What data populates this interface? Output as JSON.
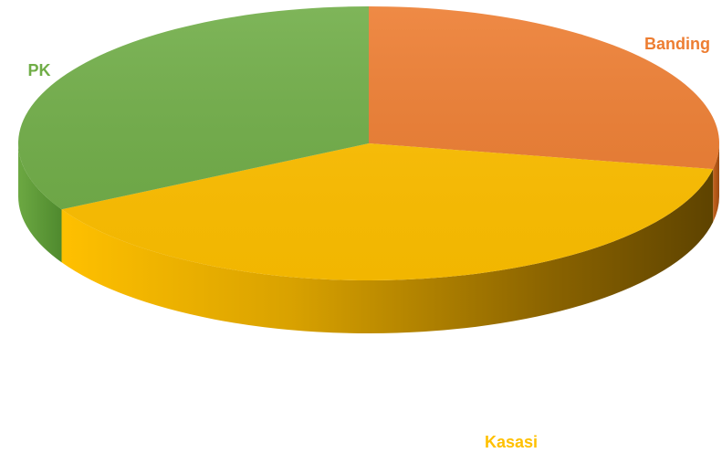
{
  "chart_data": {
    "type": "pie",
    "style": "3d",
    "categories": [
      "Banding",
      "Kasasi",
      "PK"
    ],
    "values": [
      28,
      39,
      33
    ],
    "colors": [
      "#ED7D31",
      "#FFC000",
      "#70AD47"
    ],
    "legend": "none",
    "grid": false
  }
}
